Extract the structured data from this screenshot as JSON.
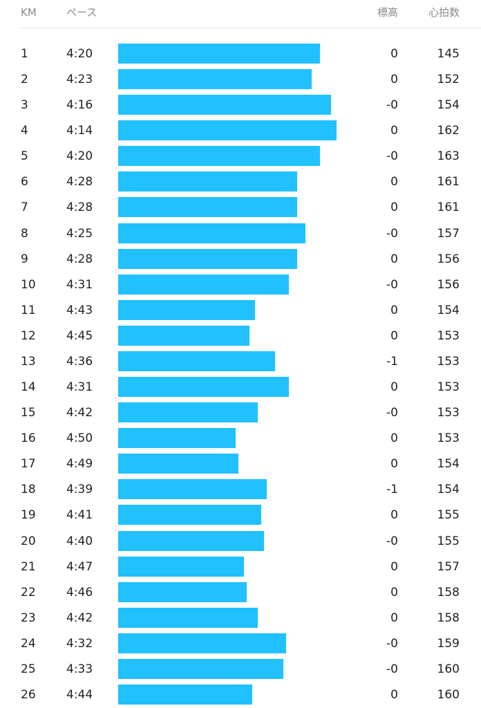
{
  "header": {
    "km": "KM",
    "pace": "ペース",
    "elevation": "標高",
    "heart_rate": "心拍数"
  },
  "rows": [
    {
      "km": "1",
      "pace": "4:20",
      "elevation": "0",
      "heart_rate": "145"
    },
    {
      "km": "2",
      "pace": "4:23",
      "elevation": "0",
      "heart_rate": "152"
    },
    {
      "km": "3",
      "pace": "4:16",
      "elevation": "-0",
      "heart_rate": "154"
    },
    {
      "km": "4",
      "pace": "4:14",
      "elevation": "0",
      "heart_rate": "162"
    },
    {
      "km": "5",
      "pace": "4:20",
      "elevation": "-0",
      "heart_rate": "163"
    },
    {
      "km": "6",
      "pace": "4:28",
      "elevation": "0",
      "heart_rate": "161"
    },
    {
      "km": "7",
      "pace": "4:28",
      "elevation": "0",
      "heart_rate": "161"
    },
    {
      "km": "8",
      "pace": "4:25",
      "elevation": "-0",
      "heart_rate": "157"
    },
    {
      "km": "9",
      "pace": "4:28",
      "elevation": "0",
      "heart_rate": "156"
    },
    {
      "km": "10",
      "pace": "4:31",
      "elevation": "-0",
      "heart_rate": "156"
    },
    {
      "km": "11",
      "pace": "4:43",
      "elevation": "0",
      "heart_rate": "154"
    },
    {
      "km": "12",
      "pace": "4:45",
      "elevation": "0",
      "heart_rate": "153"
    },
    {
      "km": "13",
      "pace": "4:36",
      "elevation": "-1",
      "heart_rate": "153"
    },
    {
      "km": "14",
      "pace": "4:31",
      "elevation": "0",
      "heart_rate": "153"
    },
    {
      "km": "15",
      "pace": "4:42",
      "elevation": "-0",
      "heart_rate": "153"
    },
    {
      "km": "16",
      "pace": "4:50",
      "elevation": "0",
      "heart_rate": "153"
    },
    {
      "km": "17",
      "pace": "4:49",
      "elevation": "0",
      "heart_rate": "154"
    },
    {
      "km": "18",
      "pace": "4:39",
      "elevation": "-1",
      "heart_rate": "154"
    },
    {
      "km": "19",
      "pace": "4:41",
      "elevation": "0",
      "heart_rate": "155"
    },
    {
      "km": "20",
      "pace": "4:40",
      "elevation": "-0",
      "heart_rate": "155"
    },
    {
      "km": "21",
      "pace": "4:47",
      "elevation": "0",
      "heart_rate": "157"
    },
    {
      "km": "22",
      "pace": "4:46",
      "elevation": "0",
      "heart_rate": "158"
    },
    {
      "km": "23",
      "pace": "4:42",
      "elevation": "0",
      "heart_rate": "158"
    },
    {
      "km": "24",
      "pace": "4:32",
      "elevation": "-0",
      "heart_rate": "159"
    },
    {
      "km": "25",
      "pace": "4:33",
      "elevation": "-0",
      "heart_rate": "160"
    },
    {
      "km": "26",
      "pace": "4:44",
      "elevation": "0",
      "heart_rate": "160"
    }
  ]
}
